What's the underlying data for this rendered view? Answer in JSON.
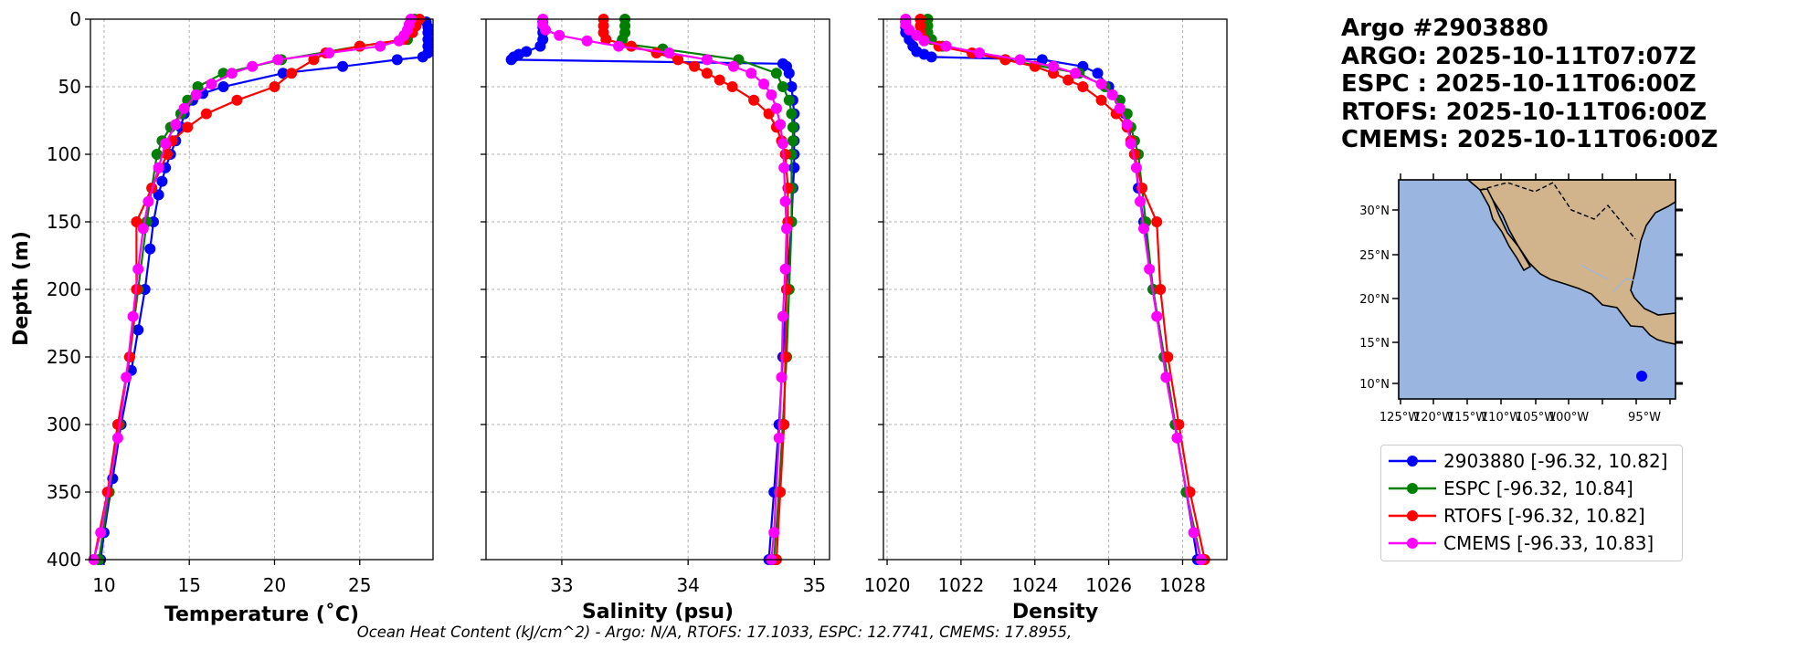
{
  "chart_data": {
    "type": "line",
    "footer": "Ocean Heat Content (kJ/cm^2) - Argo: N/A,  RTOFS: 17.1033,  ESPC: 12.7741,  CMEMS: 17.8955,",
    "ylabel": "Depth (m)",
    "ylim": [
      0,
      400
    ],
    "yticks": [
      0,
      50,
      100,
      150,
      200,
      250,
      300,
      350,
      400
    ],
    "colors": {
      "argo": "#0000ff",
      "espc": "#008000",
      "rtofs": "#ff0000",
      "cmems": "#ff00ff"
    },
    "panels": [
      {
        "xlabel": "Temperature (˚C)",
        "xlim": [
          9.2,
          29.3
        ],
        "xticks": [
          10,
          15,
          20,
          25
        ],
        "series": [
          {
            "name": "Argo",
            "depth": [
              2,
              6,
              10,
              15,
              20,
              25,
              28,
              30,
              35,
              40,
              50,
              55,
              60,
              70,
              80,
              90,
              100,
              110,
              120,
              130,
              150,
              170,
              200,
              230,
              260,
              300,
              340,
              380,
              400
            ],
            "values": [
              28.9,
              29.0,
              29.0,
              29.0,
              29.0,
              29.0,
              28.7,
              27.2,
              24.0,
              20.5,
              17.0,
              15.8,
              15.2,
              14.7,
              14.5,
              14.2,
              13.9,
              13.6,
              13.4,
              13.2,
              12.9,
              12.7,
              12.4,
              12.0,
              11.6,
              11.0,
              10.5,
              10.0,
              9.8
            ]
          },
          {
            "name": "ESPC",
            "depth": [
              0,
              5,
              10,
              15,
              20,
              30,
              40,
              50,
              60,
              70,
              80,
              90,
              100,
              125,
              150,
              200,
              250,
              300,
              350,
              400
            ],
            "values": [
              28.2,
              28.2,
              28.0,
              27.8,
              25.0,
              20.4,
              17.0,
              15.5,
              14.9,
              14.5,
              13.9,
              13.4,
              13.1,
              12.8,
              12.5,
              12.0,
              11.5,
              10.9,
              10.3,
              9.7
            ]
          },
          {
            "name": "RTOFS",
            "depth": [
              0,
              5,
              10,
              15,
              20,
              25,
              30,
              40,
              50,
              60,
              70,
              80,
              90,
              100,
              125,
              150,
              200,
              250,
              300,
              350,
              400
            ],
            "values": [
              28.5,
              28.3,
              28.1,
              27.6,
              25.0,
              23.0,
              22.3,
              21.0,
              20.0,
              17.8,
              16.0,
              14.9,
              14.0,
              13.7,
              12.8,
              11.9,
              11.9,
              11.5,
              10.8,
              10.2,
              9.4
            ]
          },
          {
            "name": "CMEMS",
            "depth": [
              0,
              4,
              8,
              12,
              16,
              20,
              25,
              30,
              35,
              40,
              48,
              56,
              66,
              78,
              92,
              110,
              135,
              155,
              185,
              220,
              265,
              310,
              380,
              400
            ],
            "values": [
              28.0,
              27.9,
              27.8,
              27.6,
              27.3,
              26.2,
              23.2,
              20.2,
              18.7,
              17.5,
              16.3,
              15.4,
              14.7,
              14.2,
              13.6,
              13.2,
              12.6,
              12.3,
              12.0,
              11.7,
              11.3,
              10.8,
              9.8,
              9.4
            ]
          }
        ]
      },
      {
        "xlabel": "Salinity (psu)",
        "xlim": [
          32.4,
          35.12
        ],
        "xticks": [
          33,
          34,
          35
        ],
        "series": [
          {
            "name": "Argo",
            "depth": [
              2,
              6,
              10,
              15,
              20,
              24,
              26,
              28,
              30,
              33,
              35,
              40,
              50,
              60,
              70,
              80,
              90,
              100,
              110,
              125,
              150,
              200,
              250,
              300,
              350,
              400
            ],
            "values": [
              32.85,
              32.85,
              32.85,
              32.85,
              32.83,
              32.72,
              32.66,
              32.62,
              32.6,
              34.75,
              34.78,
              34.8,
              34.82,
              34.83,
              34.84,
              34.84,
              34.84,
              34.84,
              34.84,
              34.83,
              34.82,
              34.78,
              34.75,
              34.72,
              34.68,
              34.64
            ]
          },
          {
            "name": "ESPC",
            "depth": [
              0,
              5,
              10,
              15,
              18,
              22,
              30,
              40,
              50,
              60,
              70,
              80,
              90,
              100,
              125,
              150,
              200,
              250,
              300,
              350,
              400
            ],
            "values": [
              33.5,
              33.5,
              33.5,
              33.48,
              33.47,
              33.8,
              34.4,
              34.7,
              34.75,
              34.8,
              34.82,
              34.83,
              34.83,
              34.82,
              34.82,
              34.82,
              34.8,
              34.78,
              34.75,
              34.72,
              34.68
            ]
          },
          {
            "name": "RTOFS",
            "depth": [
              0,
              5,
              10,
              15,
              20,
              25,
              30,
              35,
              40,
              45,
              50,
              60,
              70,
              80,
              90,
              100,
              125,
              150,
              200,
              250,
              300,
              350,
              400
            ],
            "values": [
              33.33,
              33.33,
              33.33,
              33.35,
              33.55,
              33.75,
              33.92,
              34.05,
              34.15,
              34.25,
              34.35,
              34.52,
              34.64,
              34.7,
              34.74,
              34.77,
              34.79,
              34.79,
              34.78,
              34.77,
              34.76,
              34.73,
              34.7
            ]
          },
          {
            "name": "CMEMS",
            "depth": [
              0,
              4,
              8,
              12,
              16,
              20,
              25,
              30,
              35,
              40,
              48,
              56,
              66,
              78,
              92,
              110,
              135,
              155,
              185,
              220,
              265,
              310,
              380,
              400
            ],
            "values": [
              32.85,
              32.85,
              32.87,
              32.98,
              33.2,
              33.45,
              33.85,
              34.15,
              34.36,
              34.5,
              34.6,
              34.66,
              34.7,
              34.73,
              34.75,
              34.76,
              34.77,
              34.78,
              34.77,
              34.75,
              34.74,
              34.72,
              34.68,
              34.66
            ]
          }
        ]
      },
      {
        "xlabel": "Density",
        "xlim": [
          1019.9,
          1029.2
        ],
        "xticks": [
          1020,
          1022,
          1024,
          1026,
          1028
        ],
        "series": [
          {
            "name": "Argo",
            "depth": [
              2,
              6,
              10,
              15,
              20,
              24,
              26,
              28,
              30,
              35,
              40,
              50,
              60,
              70,
              80,
              90,
              100,
              125,
              150,
              200,
              250,
              300,
              350,
              400
            ],
            "values": [
              1020.5,
              1020.5,
              1020.5,
              1020.6,
              1020.7,
              1020.8,
              1021.0,
              1021.2,
              1024.2,
              1025.3,
              1025.7,
              1026.0,
              1026.3,
              1026.45,
              1026.55,
              1026.6,
              1026.7,
              1026.8,
              1026.95,
              1027.2,
              1027.5,
              1027.8,
              1028.1,
              1028.4
            ]
          },
          {
            "name": "ESPC",
            "depth": [
              0,
              5,
              10,
              15,
              20,
              30,
              40,
              50,
              60,
              70,
              80,
              90,
              100,
              125,
              150,
              200,
              250,
              300,
              350,
              400
            ],
            "values": [
              1021.1,
              1021.1,
              1021.1,
              1021.2,
              1021.5,
              1023.2,
              1025.2,
              1025.9,
              1026.3,
              1026.5,
              1026.6,
              1026.7,
              1026.8,
              1026.9,
              1027.0,
              1027.2,
              1027.5,
              1027.8,
              1028.1,
              1028.5
            ]
          },
          {
            "name": "RTOFS",
            "depth": [
              0,
              5,
              10,
              15,
              20,
              25,
              30,
              35,
              40,
              45,
              50,
              60,
              70,
              80,
              90,
              100,
              125,
              150,
              200,
              250,
              300,
              350,
              400
            ],
            "values": [
              1020.9,
              1020.9,
              1020.9,
              1021.0,
              1021.4,
              1022.3,
              1023.2,
              1024.0,
              1024.5,
              1024.9,
              1025.3,
              1025.8,
              1026.2,
              1026.5,
              1026.6,
              1026.7,
              1026.9,
              1027.3,
              1027.4,
              1027.6,
              1027.9,
              1028.2,
              1028.6
            ]
          },
          {
            "name": "CMEMS",
            "depth": [
              0,
              4,
              8,
              12,
              16,
              20,
              25,
              30,
              35,
              40,
              48,
              56,
              66,
              78,
              92,
              110,
              135,
              155,
              185,
              220,
              265,
              310,
              380,
              400
            ],
            "values": [
              1020.5,
              1020.5,
              1020.6,
              1020.8,
              1021.0,
              1021.6,
              1022.5,
              1023.6,
              1024.5,
              1025.1,
              1025.8,
              1026.1,
              1026.3,
              1026.5,
              1026.6,
              1026.75,
              1026.85,
              1026.95,
              1027.1,
              1027.3,
              1027.55,
              1027.85,
              1028.3,
              1028.5
            ]
          }
        ]
      }
    ]
  },
  "info": {
    "title": "Argo #2903880",
    "argo_time": "ARGO: 2025-10-11T07:07Z",
    "espc_time": "ESPC : 2025-10-11T06:00Z",
    "rtofs_time": "RTOFS: 2025-10-11T06:00Z",
    "cmems_time": "CMEMS: 2025-10-11T06:00Z"
  },
  "map": {
    "lat_ticks": [
      "30°N",
      "25°N",
      "20°N",
      "15°N",
      "10°N"
    ],
    "lon_ticks": [
      "125°W",
      "120°W",
      "115°W",
      "110°W",
      "105°W",
      "100°W",
      "95°W"
    ],
    "land_color": "#d2b48c",
    "ocean_color": "#9ab6e0",
    "float_lon": -96.32,
    "float_lat": 10.82
  },
  "legend": [
    {
      "label": "2903880 [-96.32, 10.82]",
      "color": "#0000ff"
    },
    {
      "label": "ESPC [-96.32, 10.84]",
      "color": "#008000"
    },
    {
      "label": "RTOFS [-96.32, 10.82]",
      "color": "#ff0000"
    },
    {
      "label": "CMEMS [-96.33, 10.83]",
      "color": "#ff00ff"
    }
  ]
}
